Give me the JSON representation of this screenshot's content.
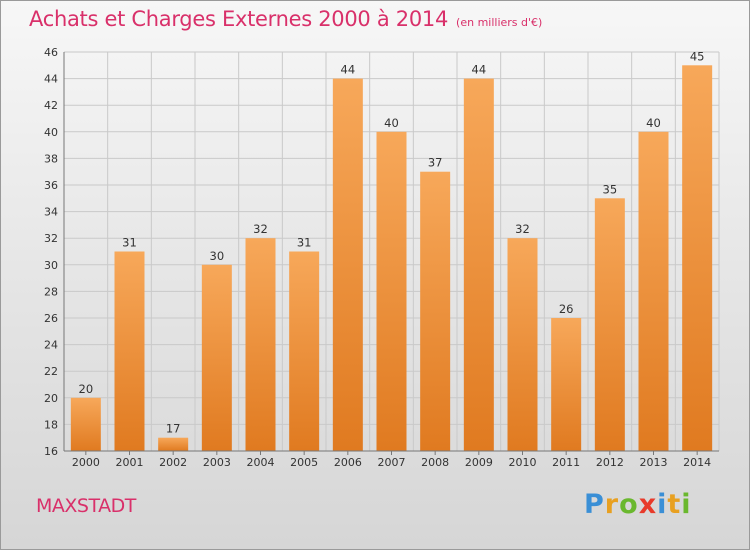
{
  "title": "Achats et Charges Externes 2000 à 2014",
  "subtitle": "(en milliers d'€)",
  "town": "MAXSTADT",
  "brand": {
    "name": "Proxiti",
    "letters": [
      {
        "ch": "P",
        "color": "#3a8fd6"
      },
      {
        "ch": "r",
        "color": "#e8a020"
      },
      {
        "ch": "o",
        "color": "#6ab82e"
      },
      {
        "ch": "x",
        "color": "#e83a2a"
      },
      {
        "ch": "i",
        "color": "#3a8fd6"
      },
      {
        "ch": "t",
        "color": "#e8a020"
      },
      {
        "ch": "i",
        "color": "#6ab82e"
      }
    ]
  },
  "colors": {
    "accent": "#d9306a",
    "bar_light": "#f7a85a",
    "bar_dark": "#e07a20",
    "grid": "#c9c9c9"
  },
  "chart_data": {
    "type": "bar",
    "categories": [
      "2000",
      "2001",
      "2002",
      "2003",
      "2004",
      "2005",
      "2006",
      "2007",
      "2008",
      "2009",
      "2010",
      "2011",
      "2012",
      "2013",
      "2014"
    ],
    "values": [
      20,
      31,
      17,
      30,
      32,
      31,
      44,
      40,
      37,
      44,
      32,
      26,
      35,
      40,
      45
    ],
    "ylim": [
      16,
      46
    ],
    "yticks": [
      16,
      18,
      20,
      22,
      24,
      26,
      28,
      30,
      32,
      34,
      36,
      38,
      40,
      42,
      44,
      46
    ],
    "grid": true,
    "legend": "none"
  }
}
